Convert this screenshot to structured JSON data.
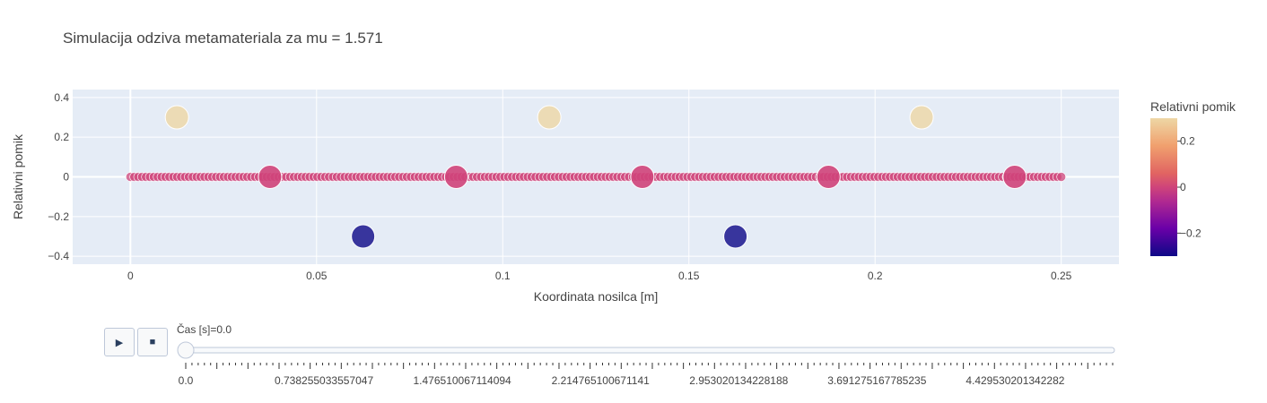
{
  "title": "Simulacija odziva metamateriala za mu = 1.571",
  "chart_data": {
    "type": "scatter",
    "xlabel": "Koordinata nosilca [m]",
    "ylabel": "Relativni pomik",
    "xlim": [
      -0.0155,
      0.2655
    ],
    "ylim": [
      -0.44,
      0.44
    ],
    "x_ticks": [
      0,
      0.05,
      0.1,
      0.15,
      0.2,
      0.25
    ],
    "x_tick_labels": [
      "0",
      "0.05",
      "0.1",
      "0.15",
      "0.2",
      "0.25"
    ],
    "y_ticks": [
      -0.4,
      -0.2,
      0,
      0.2,
      0.4
    ],
    "y_tick_labels": [
      "−0.4",
      "−0.2",
      "0",
      "0.2",
      "0.4"
    ],
    "grid": true,
    "beam": {
      "x_start": 0,
      "x_end": 0.25,
      "y": 0,
      "color_value": 0
    },
    "nodes": {
      "x": [
        0.0375,
        0.0875,
        0.1375,
        0.1875,
        0.2375
      ],
      "y": [
        0,
        0,
        0,
        0,
        0
      ],
      "color_value": [
        0,
        0,
        0,
        0,
        0
      ]
    },
    "resonators": {
      "x": [
        0.0125,
        0.0625,
        0.1125,
        0.1625,
        0.2125
      ],
      "y": [
        0.3,
        -0.3,
        0.3,
        -0.3,
        0.3
      ],
      "color_value": [
        0.3,
        -0.3,
        0.3,
        -0.3,
        0.3
      ]
    },
    "colorbar": {
      "title": "Relativni pomik",
      "range": [
        -0.3,
        0.3
      ],
      "ticks": [
        0.2,
        0,
        -0.2
      ],
      "tick_labels": [
        "0.2",
        "0",
        "−0.2"
      ],
      "colorscale": [
        "#0d0887",
        "#6a00a8",
        "#b12a90",
        "#e16462",
        "#fca636",
        "#f0f921"
      ]
    }
  },
  "controls": {
    "play_symbol": "▶",
    "stop_symbol": "■",
    "slider_label": "Čas [s]=0.0",
    "slider_value": 0,
    "slider_max": 4.95,
    "slider_tick_labels": [
      "0.0",
      "0.738255033557047",
      "1.476510067114094",
      "2.214765100671141",
      "2.953020134228188",
      "3.691275167785235",
      "4.429530201342282"
    ],
    "slider_tick_values": [
      0.0,
      0.738255033557047,
      1.476510067114094,
      2.214765100671141,
      2.953020134228188,
      3.691275167785235,
      4.429530201342282
    ]
  }
}
